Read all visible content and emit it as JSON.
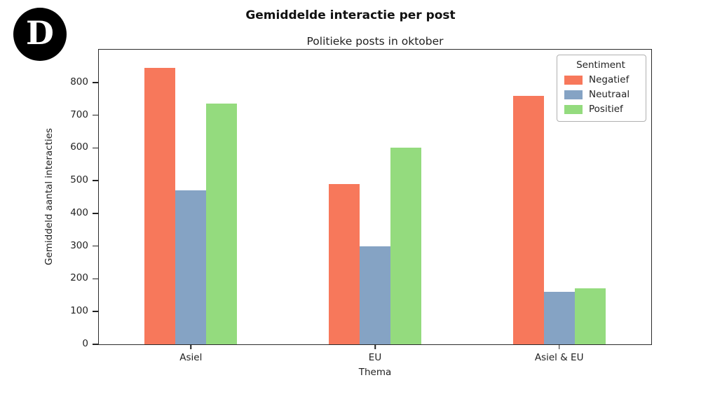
{
  "logo": {
    "letter": "D"
  },
  "chart_data": {
    "type": "bar",
    "title": "Gemiddelde interactie per post",
    "subtitle": "Politieke posts in oktober",
    "xlabel": "Thema",
    "ylabel": "Gemiddeld aantal interacties",
    "categories": [
      "Asiel",
      "EU",
      "Asiel & EU"
    ],
    "series": [
      {
        "name": "Negatief",
        "color": "#f7785b",
        "values": [
          845,
          490,
          760
        ]
      },
      {
        "name": "Neutraal",
        "color": "#85a3c4",
        "values": [
          470,
          300,
          160
        ]
      },
      {
        "name": "Positief",
        "color": "#94db7e",
        "values": [
          735,
          600,
          170
        ]
      }
    ],
    "legend_title": "Sentiment",
    "legend_position": "top-right",
    "grid": false,
    "ylim": [
      0,
      900
    ],
    "yticks": [
      0,
      100,
      200,
      300,
      400,
      500,
      600,
      700,
      800
    ]
  }
}
